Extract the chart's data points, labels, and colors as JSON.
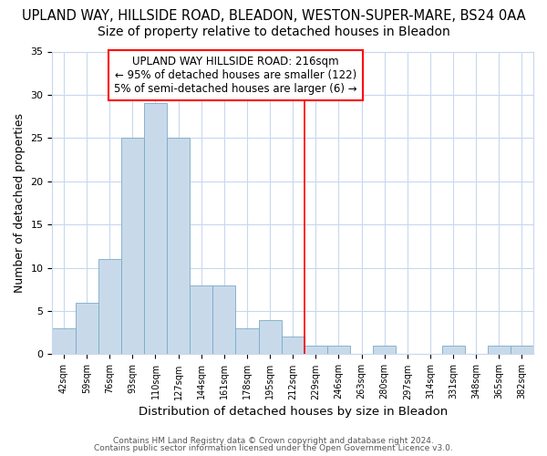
{
  "title": "UPLAND WAY, HILLSIDE ROAD, BLEADON, WESTON-SUPER-MARE, BS24 0AA",
  "subtitle": "Size of property relative to detached houses in Bleadon",
  "xlabel": "Distribution of detached houses by size in Bleadon",
  "ylabel": "Number of detached properties",
  "bin_labels": [
    "42sqm",
    "59sqm",
    "76sqm",
    "93sqm",
    "110sqm",
    "127sqm",
    "144sqm",
    "161sqm",
    "178sqm",
    "195sqm",
    "212sqm",
    "229sqm",
    "246sqm",
    "263sqm",
    "280sqm",
    "297sqm",
    "314sqm",
    "331sqm",
    "348sqm",
    "365sqm",
    "382sqm"
  ],
  "bar_heights": [
    3,
    6,
    11,
    25,
    29,
    25,
    8,
    8,
    3,
    4,
    2,
    1,
    1,
    0,
    1,
    0,
    0,
    1,
    0,
    1,
    1
  ],
  "bar_color": "#c8daea",
  "bar_edge_color": "#7aaac8",
  "red_line_x": 10.5,
  "red_line_label": "UPLAND WAY HILLSIDE ROAD: 216sqm",
  "annotation_line1": "← 95% of detached houses are smaller (122)",
  "annotation_line2": "5% of semi-detached houses are larger (6) →",
  "ylim": [
    0,
    35
  ],
  "yticks": [
    0,
    5,
    10,
    15,
    20,
    25,
    30,
    35
  ],
  "footer1": "Contains HM Land Registry data © Crown copyright and database right 2024.",
  "footer2": "Contains public sector information licensed under the Open Government Licence v3.0.",
  "bg_color": "#ffffff",
  "plot_bg_color": "#ffffff",
  "grid_color": "#c8d8ee",
  "title_fontsize": 10.5,
  "subtitle_fontsize": 10,
  "xlabel_fontsize": 9.5,
  "ylabel_fontsize": 9,
  "annotation_fontsize": 8.5,
  "footer_fontsize": 6.5
}
